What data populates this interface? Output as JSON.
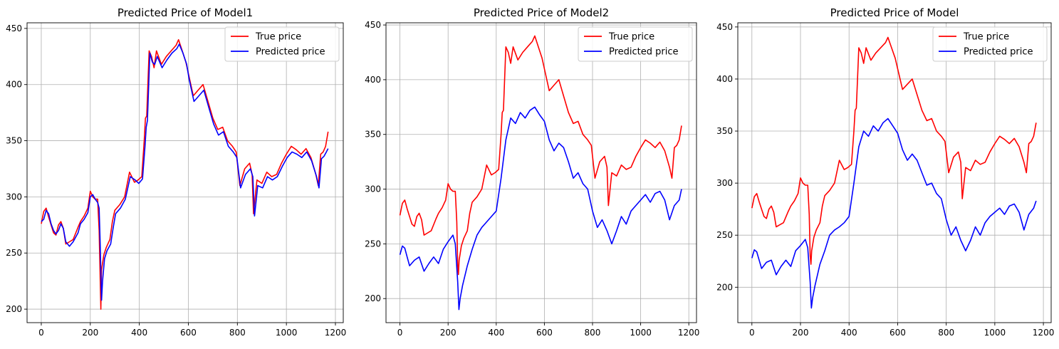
{
  "chart_data": [
    {
      "type": "line",
      "title": "Predicted Price of Model1",
      "xlabel": "",
      "ylabel": "",
      "xlim": [
        -58,
        1232
      ],
      "ylim": [
        188,
        455
      ],
      "x_ticks": [
        0,
        200,
        400,
        600,
        800,
        1000,
        1200
      ],
      "y_ticks": [
        200,
        250,
        300,
        350,
        400,
        450
      ],
      "grid": true,
      "legend": "top-right",
      "series": [
        {
          "name": "True price",
          "color": "#ff0000",
          "x": [
            0,
            10,
            20,
            30,
            40,
            50,
            60,
            70,
            80,
            90,
            100,
            115,
            130,
            150,
            160,
            175,
            190,
            200,
            210,
            220,
            230,
            236,
            240,
            243,
            246,
            255,
            265,
            280,
            290,
            300,
            320,
            340,
            360,
            380,
            395,
            410,
            420,
            425,
            430,
            440,
            450,
            460,
            470,
            490,
            510,
            530,
            550,
            560,
            575,
            590,
            600,
            620,
            640,
            660,
            680,
            700,
            720,
            740,
            760,
            780,
            795,
            810,
            830,
            850,
            860,
            866,
            880,
            900,
            920,
            940,
            960,
            980,
            1000,
            1020,
            1040,
            1060,
            1080,
            1100,
            1120,
            1130,
            1140,
            1150,
            1160,
            1170
          ],
          "y": [
            276,
            287,
            290,
            282,
            275,
            268,
            266,
            275,
            278,
            272,
            258,
            260,
            262,
            273,
            278,
            283,
            290,
            305,
            300,
            298,
            298,
            270,
            230,
            200,
            235,
            248,
            255,
            262,
            278,
            288,
            293,
            300,
            322,
            313,
            315,
            318,
            350,
            370,
            372,
            430,
            425,
            415,
            430,
            418,
            425,
            430,
            435,
            440,
            430,
            420,
            410,
            390,
            395,
            400,
            385,
            370,
            360,
            362,
            350,
            345,
            340,
            310,
            325,
            330,
            320,
            285,
            315,
            312,
            322,
            318,
            320,
            330,
            338,
            345,
            342,
            338,
            343,
            335,
            320,
            310,
            338,
            340,
            345,
            358
          ]
        },
        {
          "name": "Predicted price",
          "color": "#0000ff",
          "x": [
            0,
            10,
            20,
            30,
            40,
            50,
            60,
            70,
            80,
            90,
            100,
            115,
            130,
            150,
            160,
            175,
            190,
            200,
            210,
            220,
            230,
            236,
            240,
            246,
            250,
            258,
            268,
            283,
            293,
            303,
            323,
            343,
            363,
            383,
            398,
            413,
            423,
            428,
            433,
            443,
            453,
            463,
            473,
            493,
            513,
            533,
            553,
            563,
            578,
            593,
            603,
            623,
            643,
            663,
            683,
            703,
            723,
            743,
            763,
            783,
            798,
            813,
            833,
            853,
            863,
            870,
            883,
            903,
            923,
            943,
            963,
            983,
            1003,
            1023,
            1043,
            1063,
            1083,
            1103,
            1123,
            1133,
            1143,
            1153,
            1163,
            1170
          ],
          "y": [
            278,
            280,
            288,
            285,
            276,
            270,
            267,
            270,
            276,
            272,
            260,
            256,
            260,
            268,
            276,
            280,
            286,
            300,
            302,
            298,
            295,
            290,
            260,
            208,
            225,
            245,
            252,
            258,
            272,
            285,
            290,
            298,
            318,
            315,
            312,
            316,
            345,
            362,
            368,
            428,
            420,
            418,
            425,
            415,
            422,
            428,
            432,
            436,
            428,
            418,
            405,
            385,
            390,
            395,
            380,
            365,
            355,
            358,
            345,
            340,
            335,
            308,
            320,
            325,
            318,
            283,
            310,
            308,
            318,
            315,
            318,
            327,
            335,
            340,
            338,
            335,
            340,
            332,
            318,
            308,
            334,
            336,
            340,
            343
          ]
        }
      ]
    },
    {
      "type": "line",
      "title": "Predicted Price of Model2",
      "xlabel": "",
      "ylabel": "",
      "xlim": [
        -58,
        1232
      ],
      "ylim": [
        178,
        452
      ],
      "x_ticks": [
        0,
        200,
        400,
        600,
        800,
        1000,
        1200
      ],
      "y_ticks": [
        200,
        250,
        300,
        350,
        400,
        450
      ],
      "grid": true,
      "legend": "top-right",
      "series": [
        {
          "name": "True price",
          "color": "#ff0000",
          "x": [
            0,
            10,
            20,
            30,
            40,
            50,
            60,
            70,
            80,
            90,
            100,
            115,
            130,
            150,
            160,
            175,
            190,
            200,
            210,
            220,
            230,
            236,
            240,
            243,
            246,
            255,
            265,
            280,
            290,
            300,
            320,
            340,
            360,
            380,
            395,
            410,
            420,
            425,
            430,
            440,
            450,
            460,
            470,
            490,
            510,
            530,
            550,
            560,
            575,
            590,
            600,
            620,
            640,
            660,
            680,
            700,
            720,
            740,
            760,
            780,
            795,
            810,
            830,
            850,
            860,
            866,
            880,
            900,
            920,
            940,
            960,
            980,
            1000,
            1020,
            1040,
            1060,
            1080,
            1100,
            1120,
            1130,
            1140,
            1150,
            1160,
            1170
          ],
          "y": [
            276,
            287,
            290,
            282,
            275,
            268,
            266,
            275,
            278,
            272,
            258,
            260,
            262,
            273,
            278,
            283,
            290,
            305,
            300,
            298,
            298,
            270,
            230,
            222,
            235,
            248,
            255,
            262,
            278,
            288,
            293,
            300,
            322,
            313,
            315,
            318,
            350,
            370,
            372,
            430,
            425,
            415,
            430,
            418,
            425,
            430,
            435,
            440,
            430,
            420,
            410,
            390,
            395,
            400,
            385,
            370,
            360,
            362,
            350,
            345,
            340,
            310,
            325,
            330,
            320,
            285,
            315,
            312,
            322,
            318,
            320,
            330,
            338,
            345,
            342,
            338,
            343,
            335,
            320,
            310,
            338,
            340,
            345,
            358
          ]
        },
        {
          "name": "Predicted price",
          "color": "#0000ff",
          "x": [
            0,
            10,
            20,
            30,
            40,
            60,
            80,
            100,
            120,
            140,
            160,
            180,
            200,
            220,
            230,
            240,
            245,
            250,
            260,
            280,
            300,
            320,
            340,
            360,
            380,
            400,
            420,
            440,
            460,
            480,
            500,
            520,
            540,
            560,
            580,
            600,
            620,
            640,
            660,
            680,
            700,
            720,
            740,
            760,
            780,
            800,
            820,
            840,
            860,
            880,
            900,
            920,
            940,
            960,
            980,
            1000,
            1020,
            1040,
            1060,
            1080,
            1100,
            1120,
            1140,
            1160,
            1170
          ],
          "y": [
            240,
            248,
            246,
            238,
            230,
            235,
            238,
            225,
            232,
            238,
            232,
            245,
            252,
            258,
            250,
            215,
            190,
            200,
            212,
            230,
            245,
            258,
            265,
            270,
            275,
            280,
            310,
            345,
            365,
            360,
            370,
            365,
            372,
            375,
            368,
            362,
            345,
            335,
            342,
            338,
            325,
            310,
            315,
            305,
            300,
            280,
            265,
            272,
            262,
            250,
            262,
            275,
            268,
            280,
            285,
            290,
            295,
            288,
            296,
            298,
            290,
            272,
            285,
            290,
            300
          ]
        }
      ]
    },
    {
      "type": "line",
      "title": "Predicted Price of Model",
      "xlabel": "",
      "ylabel": "",
      "xlim": [
        -58,
        1232
      ],
      "ylim": [
        166,
        454
      ],
      "x_ticks": [
        0,
        200,
        400,
        600,
        800,
        1000,
        1200
      ],
      "y_ticks": [
        200,
        250,
        300,
        350,
        400,
        450
      ],
      "grid": true,
      "legend": "top-right",
      "series": [
        {
          "name": "True price",
          "color": "#ff0000",
          "x": [
            0,
            10,
            20,
            30,
            40,
            50,
            60,
            70,
            80,
            90,
            100,
            115,
            130,
            150,
            160,
            175,
            190,
            200,
            210,
            220,
            230,
            236,
            240,
            243,
            246,
            255,
            265,
            280,
            290,
            300,
            320,
            340,
            360,
            380,
            395,
            410,
            420,
            425,
            430,
            440,
            450,
            460,
            470,
            490,
            510,
            530,
            550,
            560,
            575,
            590,
            600,
            620,
            640,
            660,
            680,
            700,
            720,
            740,
            760,
            780,
            795,
            810,
            830,
            850,
            860,
            866,
            880,
            900,
            920,
            940,
            960,
            980,
            1000,
            1020,
            1040,
            1060,
            1080,
            1100,
            1120,
            1130,
            1140,
            1150,
            1160,
            1170
          ],
          "y": [
            276,
            287,
            290,
            282,
            275,
            268,
            266,
            275,
            278,
            272,
            258,
            260,
            262,
            273,
            278,
            283,
            290,
            305,
            300,
            298,
            298,
            270,
            230,
            222,
            235,
            248,
            255,
            262,
            278,
            288,
            293,
            300,
            322,
            313,
            315,
            318,
            350,
            370,
            372,
            430,
            425,
            415,
            430,
            418,
            425,
            430,
            435,
            440,
            430,
            420,
            410,
            390,
            395,
            400,
            385,
            370,
            360,
            362,
            350,
            345,
            340,
            310,
            325,
            330,
            320,
            285,
            315,
            312,
            322,
            318,
            320,
            330,
            338,
            345,
            342,
            338,
            343,
            335,
            320,
            310,
            338,
            340,
            345,
            358
          ]
        },
        {
          "name": "Predicted price",
          "color": "#0000ff",
          "x": [
            0,
            10,
            20,
            30,
            40,
            60,
            80,
            100,
            120,
            140,
            160,
            180,
            200,
            220,
            230,
            240,
            245,
            250,
            260,
            280,
            300,
            320,
            340,
            360,
            380,
            400,
            420,
            440,
            460,
            480,
            500,
            520,
            540,
            560,
            580,
            600,
            620,
            640,
            660,
            680,
            700,
            720,
            740,
            760,
            780,
            800,
            820,
            840,
            860,
            880,
            900,
            920,
            940,
            960,
            980,
            1000,
            1020,
            1040,
            1060,
            1080,
            1100,
            1120,
            1140,
            1160,
            1170
          ],
          "y": [
            228,
            236,
            234,
            226,
            218,
            224,
            226,
            212,
            220,
            226,
            220,
            235,
            240,
            246,
            238,
            205,
            180,
            190,
            202,
            222,
            235,
            250,
            255,
            258,
            262,
            268,
            300,
            335,
            350,
            345,
            355,
            350,
            358,
            362,
            355,
            348,
            332,
            322,
            328,
            322,
            310,
            298,
            300,
            290,
            285,
            265,
            250,
            258,
            245,
            235,
            245,
            258,
            250,
            262,
            268,
            272,
            276,
            270,
            278,
            280,
            272,
            255,
            270,
            276,
            283
          ]
        }
      ]
    }
  ]
}
